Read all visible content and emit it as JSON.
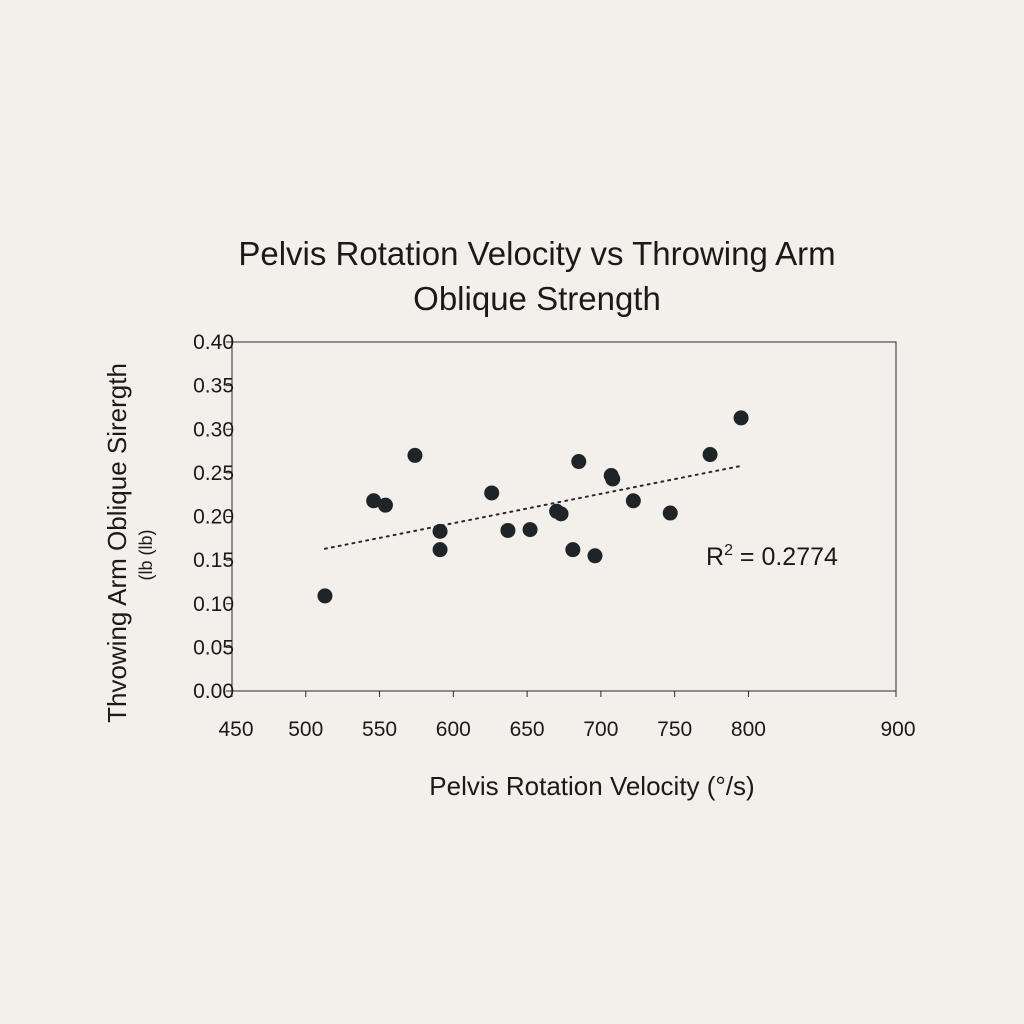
{
  "chart_data": {
    "type": "scatter",
    "title_lines": [
      "Pelvis Rotation Velocity vs Throwing Arm",
      "Oblique Strength"
    ],
    "xlabel": "Pelvis Rotation Velocity (°/s)",
    "ylabel": "Thvowing Arm Oblique Sirergth",
    "ylabel_sub": "(lb (lb)",
    "xlim": [
      450,
      900
    ],
    "ylim": [
      0.0,
      0.4
    ],
    "x_ticks": [
      "450",
      "500",
      "550",
      "600",
      "650",
      "700",
      "750",
      "800",
      "900"
    ],
    "y_ticks": [
      "0.00",
      "0.05",
      "0.10",
      "0.15",
      "0.20",
      "0.25",
      "0.30",
      "0.35",
      "0.40"
    ],
    "grid": false,
    "point_color": "#1f2428",
    "series": [
      {
        "points": [
          {
            "x": 513,
            "y": 0.109
          },
          {
            "x": 546,
            "y": 0.218
          },
          {
            "x": 554,
            "y": 0.213
          },
          {
            "x": 574,
            "y": 0.27
          },
          {
            "x": 591,
            "y": 0.183
          },
          {
            "x": 591,
            "y": 0.162
          },
          {
            "x": 626,
            "y": 0.227
          },
          {
            "x": 637,
            "y": 0.184
          },
          {
            "x": 652,
            "y": 0.185
          },
          {
            "x": 670,
            "y": 0.206
          },
          {
            "x": 673,
            "y": 0.203
          },
          {
            "x": 681,
            "y": 0.162
          },
          {
            "x": 685,
            "y": 0.263
          },
          {
            "x": 696,
            "y": 0.155
          },
          {
            "x": 707,
            "y": 0.247
          },
          {
            "x": 708,
            "y": 0.243
          },
          {
            "x": 722,
            "y": 0.218
          },
          {
            "x": 747,
            "y": 0.204
          },
          {
            "x": 774,
            "y": 0.271
          },
          {
            "x": 795,
            "y": 0.313
          }
        ]
      }
    ],
    "trendline": {
      "style": "dotted",
      "x": [
        513,
        795
      ],
      "y": [
        0.163,
        0.258
      ]
    },
    "annotation": {
      "prefix": "R",
      "superscript": "2",
      "text": " = 0.2774",
      "x": 730,
      "y": 0.152
    }
  }
}
